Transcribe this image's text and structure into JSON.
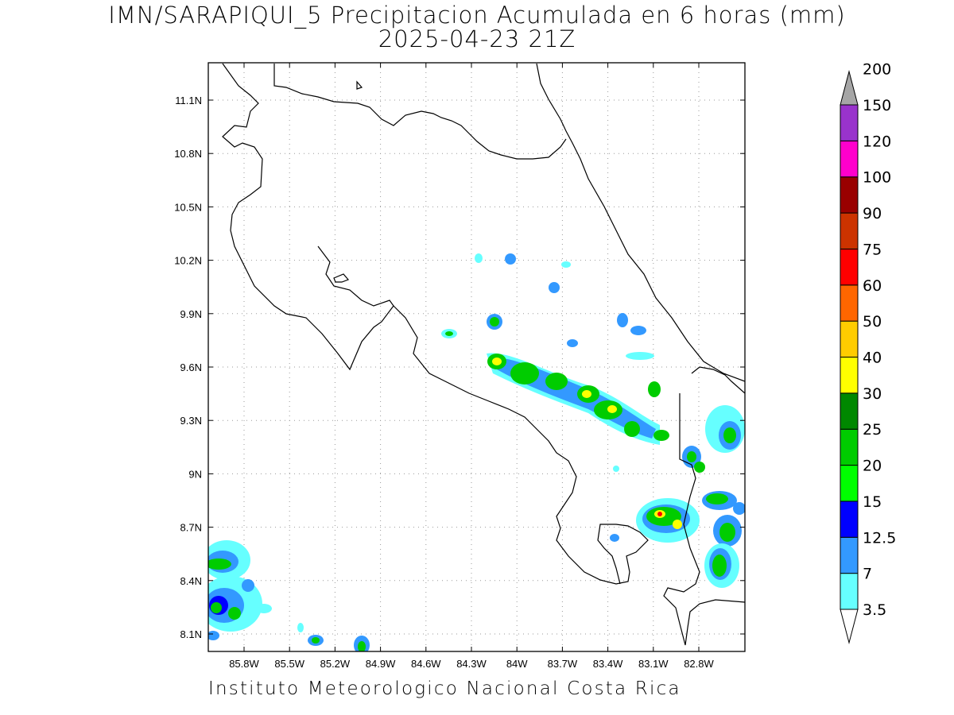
{
  "title": {
    "line1": "IMN/SARAPIQUI_5 Precipitacion Acumulada en 6 horas (mm)",
    "line2": "2025-04-23 21Z"
  },
  "footer": "Instituto Meteorologico Nacional Costa Rica",
  "map": {
    "lon_range": [
      -86.0,
      -82.5
    ],
    "lat_range": [
      8.0,
      11.3
    ],
    "lon_ticks": [
      "85.8W",
      "85.5W",
      "85.2W",
      "84.9W",
      "84.6W",
      "84.3W",
      "84W",
      "83.7W",
      "83.4W",
      "83.1W",
      "82.8W"
    ],
    "lat_ticks": [
      "8.1N",
      "8.4N",
      "8.7N",
      "9N",
      "9.3N",
      "9.6N",
      "9.9N",
      "10.2N",
      "10.5N",
      "10.8N",
      "11.1N"
    ]
  },
  "colorbar": {
    "labels": [
      "3.5",
      "7",
      "12.5",
      "15",
      "20",
      "25",
      "30",
      "40",
      "50",
      "60",
      "75",
      "90",
      "100",
      "120",
      "150",
      "200"
    ],
    "colors": [
      "#66ffff",
      "#3399ff",
      "#0000ff",
      "#00ff00",
      "#00cc00",
      "#008800",
      "#ffff00",
      "#ffcc00",
      "#ff6600",
      "#ff0000",
      "#cc3300",
      "#990000",
      "#ff00cc",
      "#9933cc",
      "#f2f2f2",
      "#a6a6a6"
    ]
  }
}
